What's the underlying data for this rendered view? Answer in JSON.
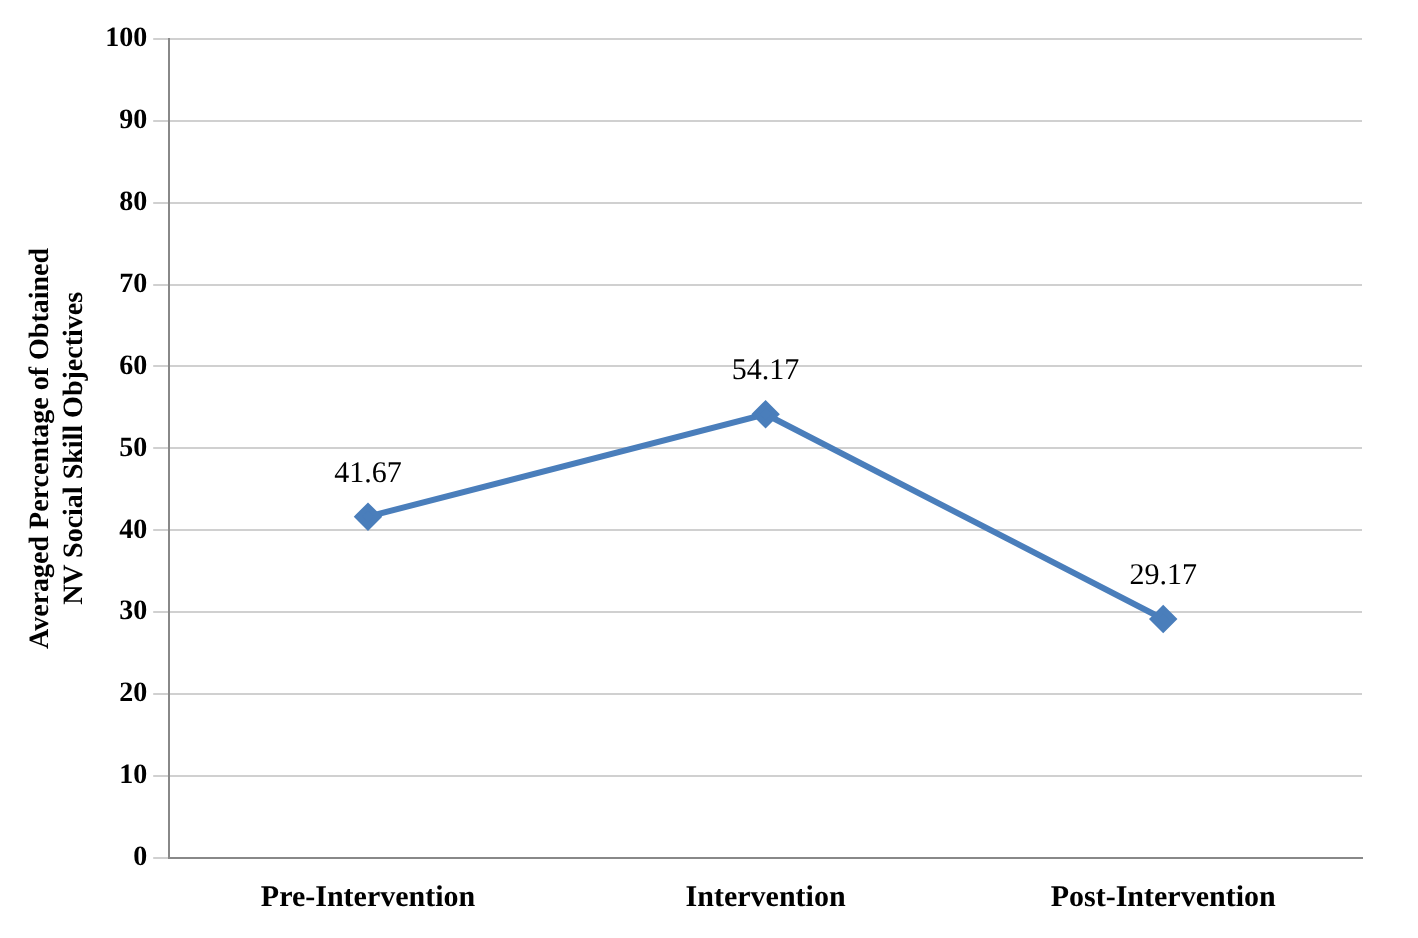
{
  "chart_data": {
    "type": "line",
    "ylabel": "Averaged Percentage of Obtained NV Social Skill Objectives",
    "categories": [
      "Pre-Intervention",
      "Intervention",
      "Post-Intervention"
    ],
    "series": [
      {
        "color": "#4a7ebb",
        "values": [
          41.67,
          54.17,
          29.17
        ]
      }
    ],
    "ylim": [
      0,
      100
    ],
    "yticks": [
      0,
      10,
      20,
      30,
      40,
      50,
      60,
      70,
      80,
      90,
      100
    ],
    "grid": "y",
    "marker": "diamond",
    "line_style": "solid",
    "data_labels": true
  }
}
